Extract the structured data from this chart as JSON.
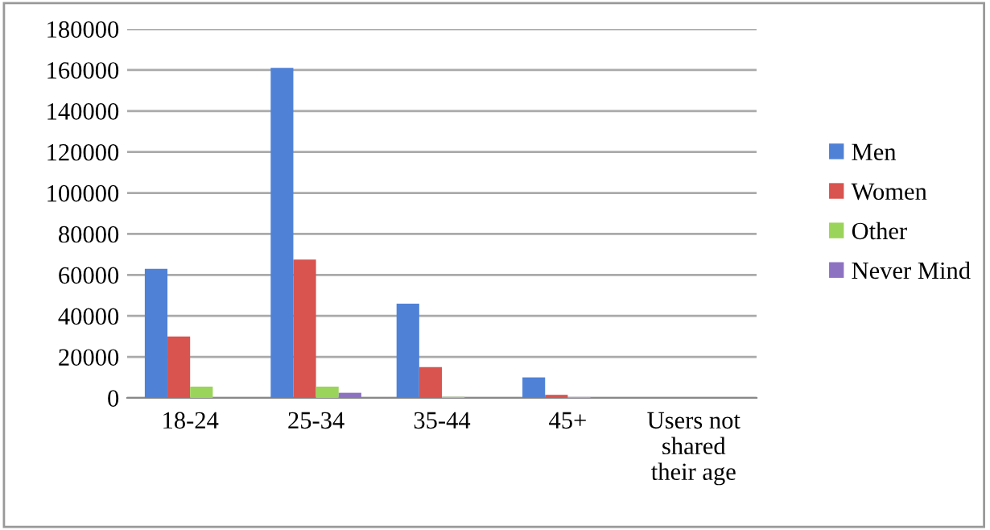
{
  "chart_data": {
    "type": "bar",
    "categories": [
      "18-24",
      "25-34",
      "35-44",
      "45+",
      "Users not\nshared\ntheir age"
    ],
    "series": [
      {
        "name": "Men",
        "color": "#4f81d6",
        "values": [
          63000,
          161000,
          46000,
          10000,
          0
        ]
      },
      {
        "name": "Women",
        "color": "#d9534f",
        "values": [
          30000,
          67500,
          15000,
          1500,
          0
        ]
      },
      {
        "name": "Other",
        "color": "#9bd45a",
        "values": [
          5500,
          5500,
          500,
          300,
          0
        ]
      },
      {
        "name": "Never Mind",
        "color": "#8e72c2",
        "values": [
          null,
          2500,
          null,
          null,
          null
        ]
      }
    ],
    "ylim": [
      0,
      180000
    ],
    "yticks": [
      0,
      20000,
      40000,
      60000,
      80000,
      100000,
      120000,
      140000,
      160000,
      180000
    ],
    "grid": "y",
    "legend": "right"
  }
}
